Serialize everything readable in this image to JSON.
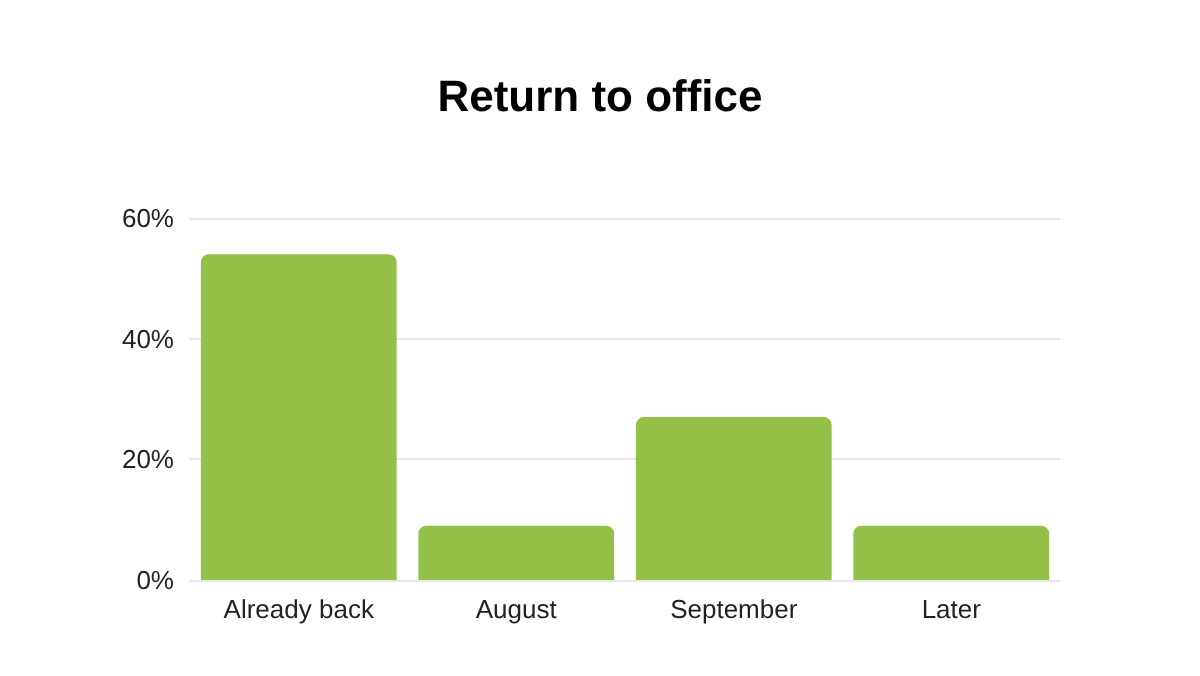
{
  "chart_data": {
    "type": "bar",
    "title": "Return to office",
    "categories": [
      "Already back",
      "August",
      "September",
      "Later"
    ],
    "values": [
      54,
      9,
      27,
      9
    ],
    "color": "#93c047",
    "ylim": [
      0,
      60
    ],
    "yticks": [
      {
        "value": 0,
        "label": "0%"
      },
      {
        "value": 20,
        "label": "20%"
      },
      {
        "value": 40,
        "label": "40%"
      },
      {
        "value": 60,
        "label": "60%"
      }
    ],
    "grid": "y"
  }
}
